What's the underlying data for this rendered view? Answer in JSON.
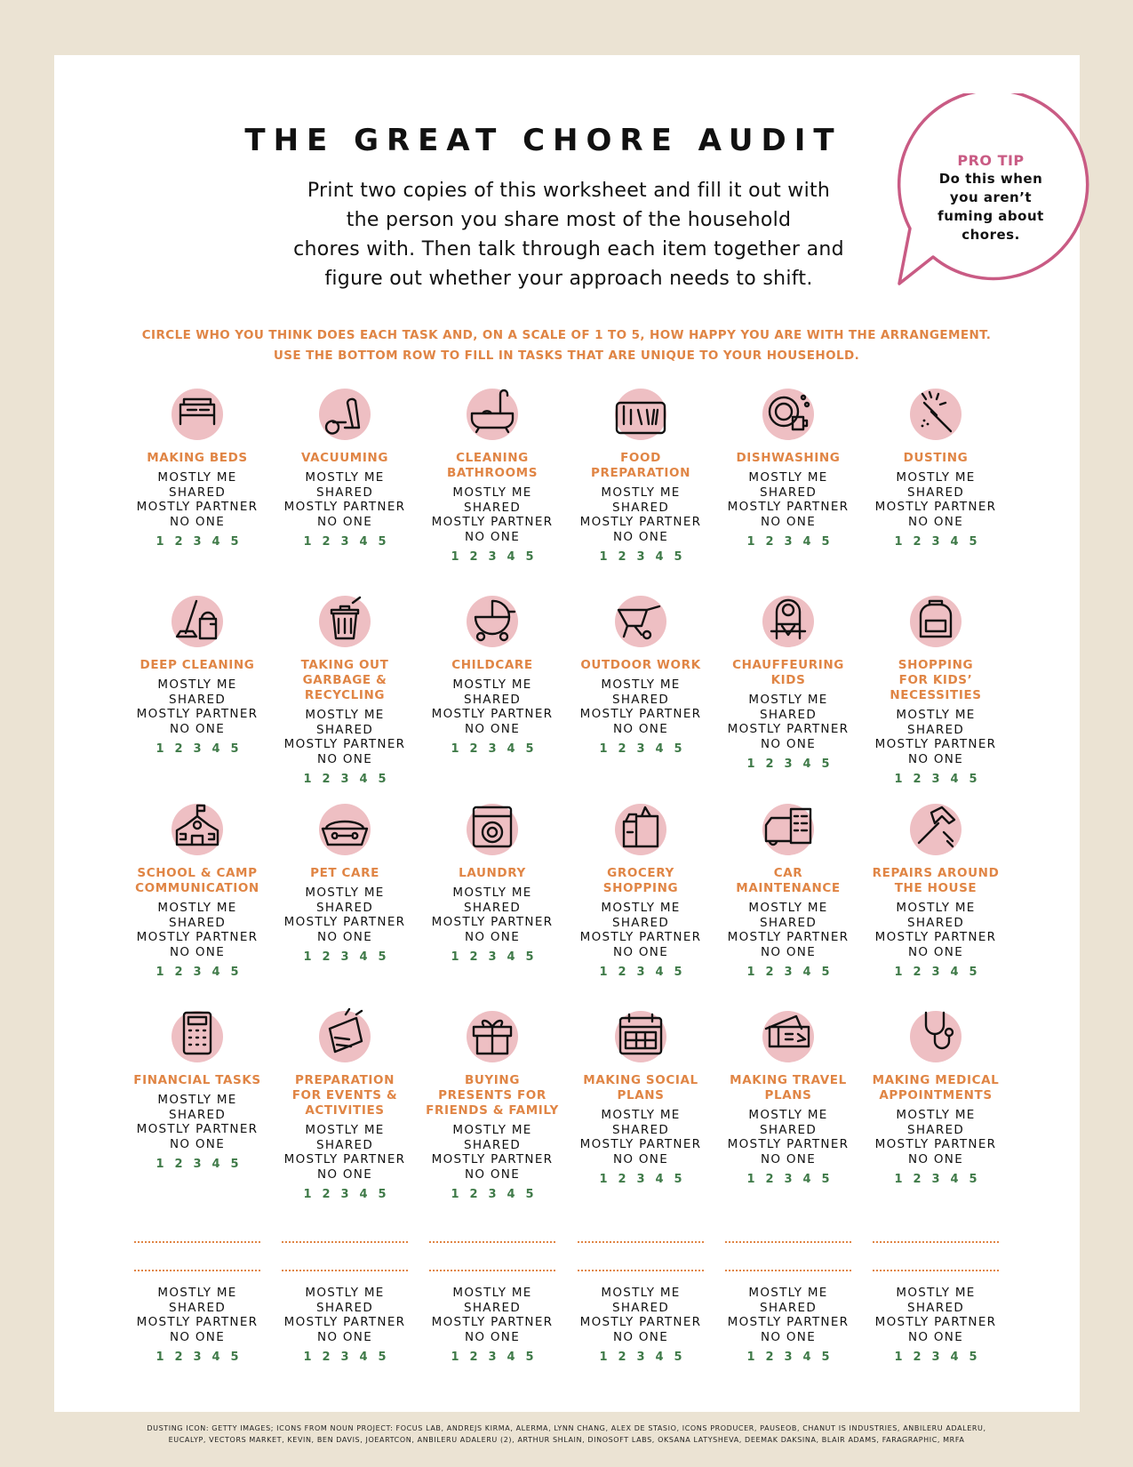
{
  "title": "THE GREAT CHORE AUDIT",
  "intro": "Print two copies of this worksheet and fill it out with\nthe person you share most of the household\nchores with. Then talk through each item together and\nfigure out whether your approach needs to shift.",
  "instructions": [
    "CIRCLE WHO YOU THINK DOES EACH TASK AND, ON A SCALE OF 1 TO 5, HOW HAPPY YOU ARE WITH THE ARRANGEMENT.",
    "USE THE BOTTOM ROW TO FILL IN TASKS THAT ARE UNIQUE TO YOUR HOUSEHOLD."
  ],
  "pro_tip": {
    "heading": "PRO TIP",
    "text": "Do this when you aren’t fuming about chores."
  },
  "options": [
    "MOSTLY ME",
    "SHARED",
    "MOSTLY PARTNER",
    "NO ONE"
  ],
  "scale": [
    "1",
    "2",
    "3",
    "4",
    "5"
  ],
  "colors": {
    "background": "#ebe3d3",
    "accent_orange": "#e08545",
    "icon_circle": "#eebfc3",
    "bubble_pink": "#c95b84",
    "scale_green": "#3f7a48"
  },
  "tasks": [
    {
      "label": "MAKING BEDS",
      "icon": "bed-icon"
    },
    {
      "label": "VACUUMING",
      "icon": "vacuum-icon"
    },
    {
      "label": "CLEANING\nBATHROOMS",
      "icon": "bathtub-icon"
    },
    {
      "label": "FOOD\nPREPARATION",
      "icon": "cutting-board-icon"
    },
    {
      "label": "DISHWASHING",
      "icon": "dish-icon"
    },
    {
      "label": "DUSTING",
      "icon": "duster-icon"
    },
    {
      "label": "DEEP CLEANING",
      "icon": "mop-bucket-icon"
    },
    {
      "label": "TAKING OUT\nGARBAGE &\nRECYCLING",
      "icon": "trash-can-icon"
    },
    {
      "label": "CHILDCARE",
      "icon": "stroller-icon"
    },
    {
      "label": "OUTDOOR WORK",
      "icon": "wheelbarrow-icon"
    },
    {
      "label": "CHAUFFEURING\nKIDS",
      "icon": "car-seat-icon"
    },
    {
      "label": "SHOPPING\nFOR KIDS’\nNECESSITIES",
      "icon": "backpack-icon"
    },
    {
      "label": "SCHOOL & CAMP\nCOMMUNICATION",
      "icon": "school-icon"
    },
    {
      "label": "PET CARE",
      "icon": "dog-bowl-icon"
    },
    {
      "label": "LAUNDRY",
      "icon": "washing-machine-icon"
    },
    {
      "label": "GROCERY\nSHOPPING",
      "icon": "grocery-bag-icon"
    },
    {
      "label": "CAR\nMAINTENANCE",
      "icon": "car-checklist-icon"
    },
    {
      "label": "REPAIRS AROUND\nTHE HOUSE",
      "icon": "hammer-icon"
    },
    {
      "label": "FINANCIAL TASKS",
      "icon": "calculator-icon"
    },
    {
      "label": "PREPARATION\nFOR EVENTS &\nACTIVITIES",
      "icon": "party-icon"
    },
    {
      "label": "BUYING\nPRESENTS FOR\nFRIENDS & FAMILY",
      "icon": "gift-icon"
    },
    {
      "label": "MAKING SOCIAL\nPLANS",
      "icon": "calendar-icon"
    },
    {
      "label": "MAKING TRAVEL\nPLANS",
      "icon": "plane-ticket-icon"
    },
    {
      "label": "MAKING MEDICAL\nAPPOINTMENTS",
      "icon": "stethoscope-icon"
    }
  ],
  "credits": [
    "DUSTING ICON: GETTY IMAGES; ICONS FROM NOUN PROJECT: FOCUS LAB, ANDREJS KIRMA, ALERMA, LYNN CHANG, ALEX DE STASIO, ICONS PRODUCER, PAUSEOB, CHANUT IS INDUSTRIES, ANBILERU ADALERU,",
    "EUCALYP, VECTORS MARKET, KEVIN, BEN DAVIS, JOEARTCON, ANBILERU ADALERU (2), ARTHUR SHLAIN, DINOSOFT LABS, OKSANA LATYSHEVA, DEEMAK DAKSINA, BLAIR ADAMS, FARAGRAPHIC, MRFA"
  ]
}
